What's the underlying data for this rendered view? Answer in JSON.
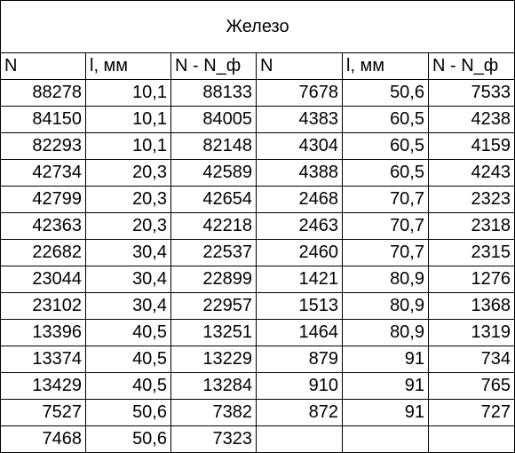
{
  "title": "Железо",
  "headers": [
    "N",
    "l, мм",
    "N - N_ф",
    "N",
    "l, мм",
    "N - N_ф"
  ],
  "rows": [
    [
      "88278",
      "10,1",
      "88133",
      "7678",
      "50,6",
      "7533"
    ],
    [
      "84150",
      "10,1",
      "84005",
      "4383",
      "60,5",
      "4238"
    ],
    [
      "82293",
      "10,1",
      "82148",
      "4304",
      "60,5",
      "4159"
    ],
    [
      "42734",
      "20,3",
      "42589",
      "4388",
      "60,5",
      "4243"
    ],
    [
      "42799",
      "20,3",
      "42654",
      "2468",
      "70,7",
      "2323"
    ],
    [
      "42363",
      "20,3",
      "42218",
      "2463",
      "70,7",
      "2318"
    ],
    [
      "22682",
      "30,4",
      "22537",
      "2460",
      "70,7",
      "2315"
    ],
    [
      "23044",
      "30,4",
      "22899",
      "1421",
      "80,9",
      "1276"
    ],
    [
      "23102",
      "30,4",
      "22957",
      "1513",
      "80,9",
      "1368"
    ],
    [
      "13396",
      "40,5",
      "13251",
      "1464",
      "80,9",
      "1319"
    ],
    [
      "13374",
      "40,5",
      "13229",
      "879",
      "91",
      "734"
    ],
    [
      "13429",
      "40,5",
      "13284",
      "910",
      "91",
      "765"
    ],
    [
      "7527",
      "50,6",
      "7382",
      "872",
      "91",
      "727"
    ],
    [
      "7468",
      "50,6",
      "7323",
      "",
      "",
      ""
    ]
  ]
}
